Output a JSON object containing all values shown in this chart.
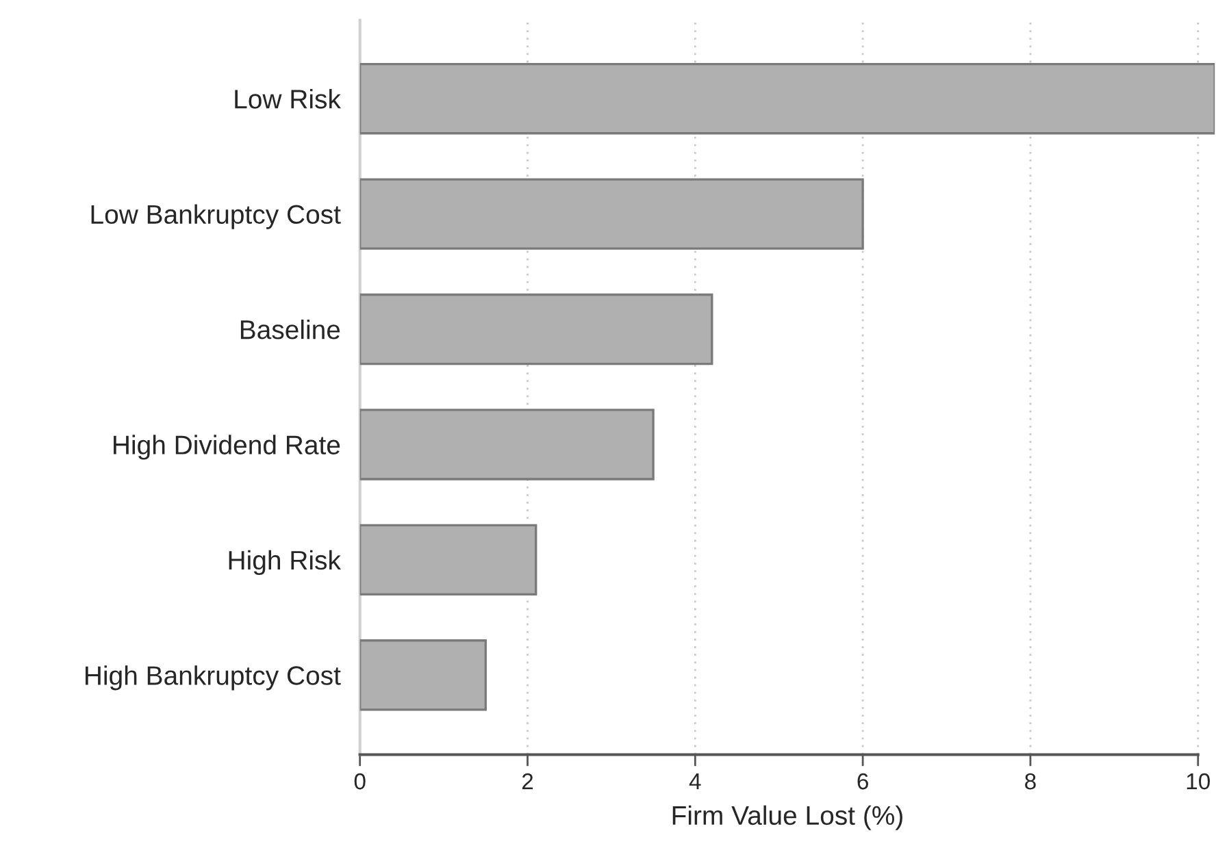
{
  "chart_data": {
    "type": "bar",
    "orientation": "horizontal",
    "xlabel": "Firm Value Lost (%)",
    "categories": [
      "Low Risk",
      "Low Bankruptcy Cost",
      "Baseline",
      "High Dividend Rate",
      "High Risk",
      "High Bankruptcy Cost"
    ],
    "values": [
      10.2,
      6.0,
      4.2,
      3.5,
      2.1,
      1.5
    ],
    "color": "#b0b0b0",
    "xlim": [
      0,
      10.2
    ],
    "xticks": [
      0,
      2,
      4,
      6,
      8,
      10
    ],
    "grid": "x"
  }
}
